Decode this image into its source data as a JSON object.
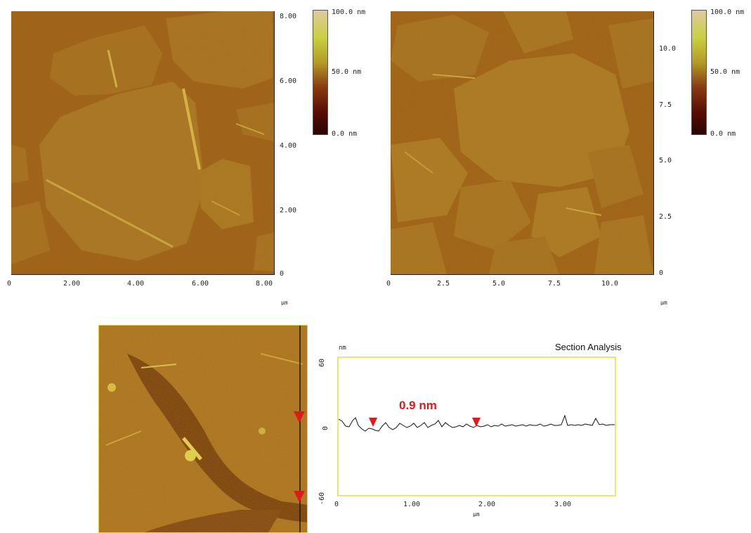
{
  "panel_a": {
    "x_ticks": [
      "0",
      "2.00",
      "4.00",
      "6.00",
      "8.00"
    ],
    "y_ticks": [
      "8.00",
      "6.00",
      "4.00",
      "2.00",
      "0"
    ],
    "unit": "µm",
    "colorbar": {
      "top": "100.0 nm",
      "mid": "50.0 nm",
      "bottom": "0.0 nm"
    }
  },
  "panel_b": {
    "x_ticks": [
      "0",
      "2.5",
      "5.0",
      "7.5",
      "10.0"
    ],
    "y_ticks": [
      "10.0",
      "7.5",
      "5.0",
      "2.5",
      "0"
    ],
    "unit": "µm",
    "colorbar": {
      "top": "100.0 nm",
      "mid": "50.0 nm",
      "bottom": "0.0 nm"
    }
  },
  "section": {
    "title": "Section Analysis",
    "y_unit": "nm",
    "x_unit": "µm",
    "y_ticks": [
      "60",
      "0",
      "-60"
    ],
    "x_ticks": [
      "0",
      "1.00",
      "2.00",
      "3.00"
    ],
    "step_label": "0.9 nm"
  },
  "colors": {
    "afm_background": "#9a5c12",
    "afm_flake": "#a8741e",
    "section_frame": "#f1e46a",
    "marker_red": "#e01a1a"
  }
}
